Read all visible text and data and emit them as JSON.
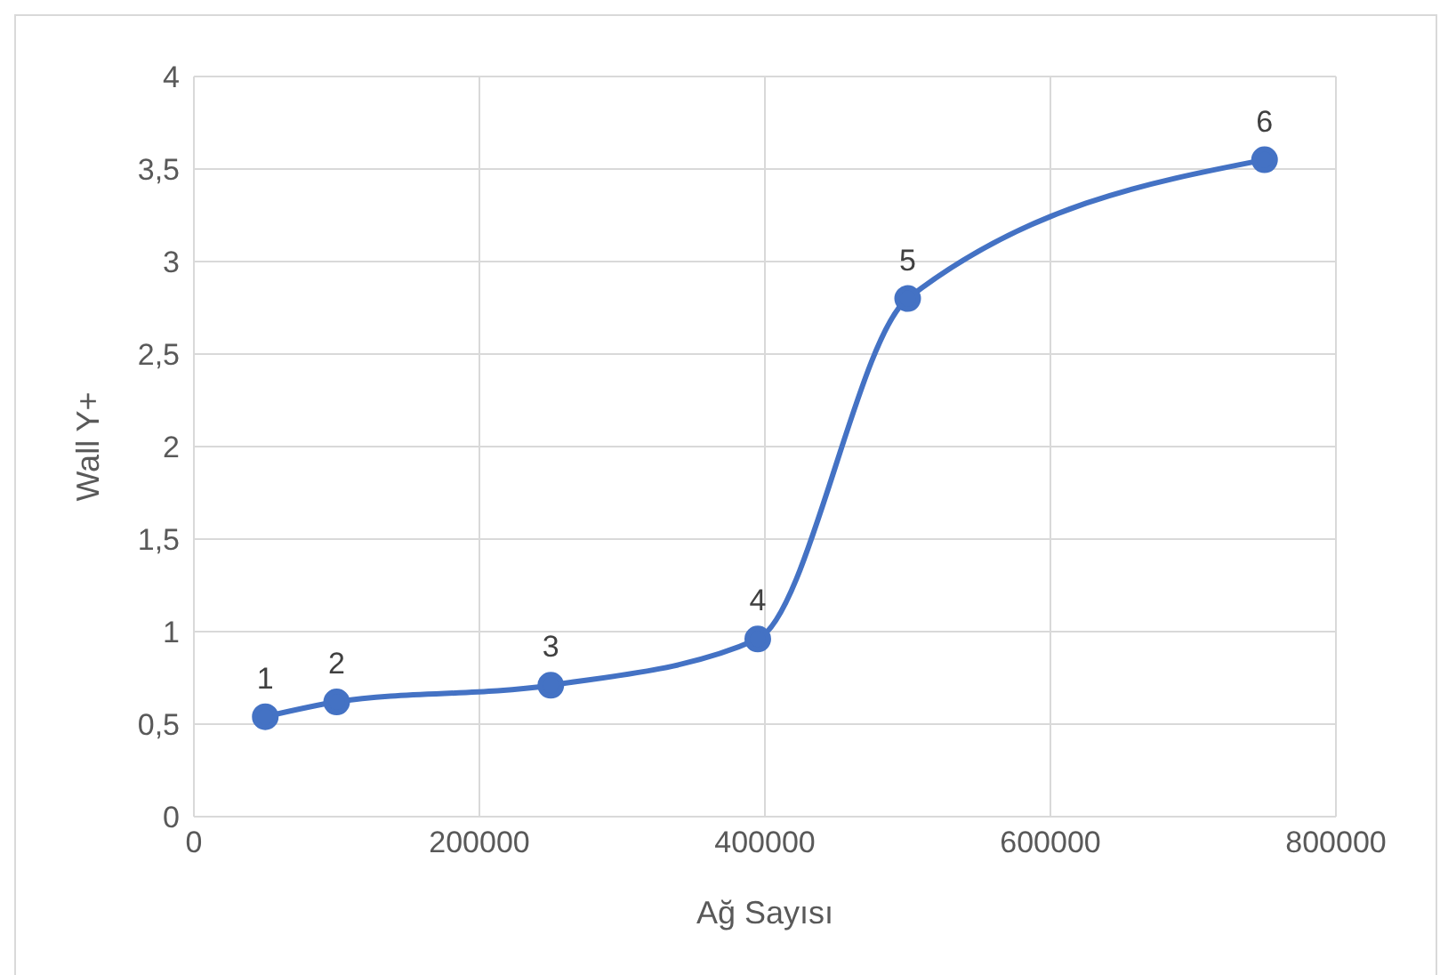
{
  "chart_data": {
    "type": "line",
    "xlabel": "Ağ Sayısı",
    "ylabel": "Wall Y+",
    "x": [
      50000,
      100000,
      250000,
      395000,
      500000,
      750000
    ],
    "values": [
      0.54,
      0.62,
      0.71,
      0.96,
      2.8,
      3.55
    ],
    "annotations": [
      {
        "text": "1",
        "x": 50000,
        "y": 0.54
      },
      {
        "text": "2",
        "x": 100000,
        "y": 0.62
      },
      {
        "text": "3",
        "x": 250000,
        "y": 0.71
      },
      {
        "text": "4",
        "x": 395000,
        "y": 0.96
      },
      {
        "text": "5",
        "x": 500000,
        "y": 2.8
      },
      {
        "text": "6",
        "x": 750000,
        "y": 3.55
      }
    ],
    "color": "#4472c4",
    "marker": "circle",
    "line_style": "solid",
    "grid": true,
    "xlim": [
      0,
      800000
    ],
    "xticks": [
      0,
      200000,
      400000,
      600000,
      800000
    ],
    "ylim": [
      0,
      4
    ],
    "yticks": [
      0,
      {
        "value": 0.5,
        "label": "0,5"
      },
      1,
      {
        "value": 1.5,
        "label": "1,5"
      },
      2,
      {
        "value": 2.5,
        "label": "2,5"
      },
      3,
      {
        "value": 3.5,
        "label": "3,5"
      },
      4
    ]
  }
}
